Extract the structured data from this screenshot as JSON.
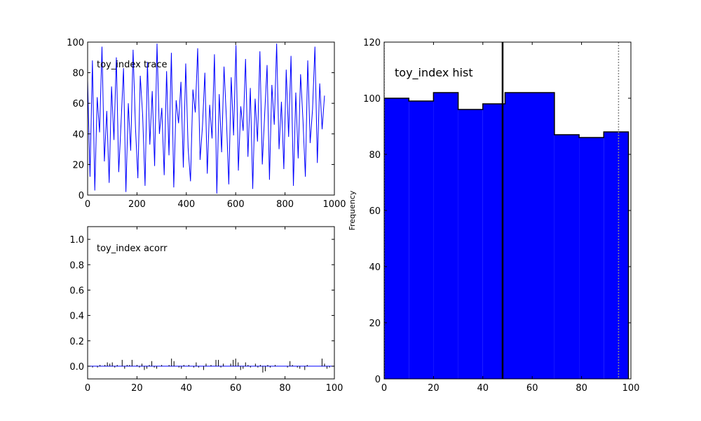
{
  "chart_data": [
    {
      "type": "line",
      "title": "toy_index trace",
      "xlim": [
        0,
        1000
      ],
      "ylim": [
        0,
        100
      ],
      "x_ticks": [
        "0",
        "200",
        "400",
        "600",
        "800",
        "1000"
      ],
      "y_ticks": [
        "0",
        "20",
        "40",
        "60",
        "80",
        "100"
      ],
      "series": [
        {
          "color": "#0000ff",
          "x_range": [
            0,
            960
          ],
          "values": [
            75,
            12,
            88,
            3,
            64,
            41,
            97,
            22,
            55,
            8,
            71,
            36,
            90,
            15,
            48,
            83,
            2,
            60,
            29,
            95,
            44,
            11,
            78,
            52,
            6,
            87,
            33,
            68,
            19,
            99,
            40,
            57,
            13,
            81,
            26,
            93,
            5,
            62,
            47,
            74,
            18,
            86,
            31,
            9,
            69,
            54,
            96,
            23,
            45,
            80,
            14,
            59,
            37,
            92,
            1,
            66,
            28,
            84,
            50,
            7,
            77,
            39,
            98,
            16,
            58,
            42,
            89,
            25,
            70,
            4,
            63,
            35,
            94,
            20,
            53,
            85,
            10,
            72,
            46,
            99,
            30,
            61,
            17,
            82,
            38,
            91,
            6,
            67,
            24,
            79,
            49,
            12,
            88,
            34,
            56,
            97,
            21,
            73,
            43,
            65
          ],
          "note": ""
        }
      ]
    },
    {
      "type": "bar",
      "title": "toy_index acorr",
      "xlim": [
        0,
        100
      ],
      "ylim": [
        -0.1,
        1.1
      ],
      "x_ticks": [
        "0",
        "20",
        "40",
        "60",
        "80",
        "100"
      ],
      "y_ticks": [
        "0.0",
        "0.2",
        "0.4",
        "0.6",
        "0.8",
        "1.0"
      ],
      "lags": [
        1,
        2,
        3,
        4,
        5,
        6,
        7,
        8,
        9,
        10,
        11,
        12,
        13,
        14,
        15,
        16,
        17,
        18,
        19,
        20,
        21,
        22,
        23,
        24,
        25,
        26,
        27,
        28,
        29,
        30,
        31,
        32,
        33,
        34,
        35,
        36,
        37,
        38,
        39,
        40,
        41,
        42,
        43,
        44,
        45,
        46,
        47,
        48,
        49,
        50,
        51,
        52,
        53,
        54,
        55,
        56,
        57,
        58,
        59,
        60,
        61,
        62,
        63,
        64,
        65,
        66,
        67,
        68,
        69,
        70,
        71,
        72,
        73,
        74,
        75,
        76,
        77,
        78,
        79,
        80,
        81,
        82,
        83,
        84,
        85,
        86,
        87,
        88,
        89,
        90,
        91,
        92,
        93,
        94,
        95,
        96,
        97,
        98,
        99
      ],
      "values": [
        0.0,
        -0.01,
        0.0,
        -0.01,
        0.01,
        0.0,
        0.01,
        0.03,
        0.02,
        0.03,
        -0.01,
        0.01,
        0.0,
        0.05,
        -0.02,
        0.01,
        0.01,
        0.05,
        0.0,
        0.01,
        -0.01,
        0.02,
        -0.03,
        -0.02,
        0.01,
        0.04,
        -0.01,
        -0.02,
        0.0,
        0.01,
        0.0,
        0.0,
        0.01,
        0.06,
        0.04,
        0.0,
        -0.01,
        -0.02,
        0.01,
        0.0,
        0.01,
        0.0,
        -0.01,
        0.03,
        -0.01,
        0.0,
        -0.03,
        0.02,
        0.0,
        0.01,
        0.0,
        0.05,
        0.05,
        -0.01,
        0.02,
        0.0,
        0.0,
        0.02,
        0.05,
        0.06,
        0.03,
        -0.03,
        -0.02,
        0.03,
        0.01,
        -0.01,
        0.0,
        0.02,
        -0.01,
        0.01,
        -0.05,
        -0.04,
        0.01,
        -0.01,
        0.0,
        0.01,
        0.0,
        0.0,
        0.0,
        0.0,
        -0.01,
        0.04,
        0.01,
        0.0,
        -0.01,
        -0.02,
        0.0,
        -0.03,
        0.01,
        0.0,
        0.0,
        0.0,
        0.0,
        0.0,
        0.06,
        0.02,
        -0.02,
        -0.01,
        0.0
      ],
      "color": "#000000"
    },
    {
      "type": "bar",
      "title": "toy_index hist",
      "ylabel": "Frequency",
      "xlim": [
        0,
        100
      ],
      "ylim": [
        0,
        120
      ],
      "x_ticks": [
        "0",
        "20",
        "40",
        "60",
        "80",
        "100"
      ],
      "y_ticks": [
        "0",
        "20",
        "40",
        "60",
        "80",
        "100",
        "120"
      ],
      "bins": [
        {
          "x0": 0,
          "x1": 10,
          "count": 100
        },
        {
          "x0": 10,
          "x1": 20,
          "count": 99
        },
        {
          "x0": 20,
          "x1": 30,
          "count": 102
        },
        {
          "x0": 30,
          "x1": 40,
          "count": 96
        },
        {
          "x0": 40,
          "x1": 49,
          "count": 98
        },
        {
          "x0": 49,
          "x1": 69,
          "count": 102
        },
        {
          "x0": 69,
          "x1": 79,
          "count": 87
        },
        {
          "x0": 79,
          "x1": 89,
          "count": 86
        },
        {
          "x0": 89,
          "x1": 99,
          "count": 88
        }
      ],
      "fill": "#0000ff",
      "edge": "#000000",
      "vlines": [
        {
          "x": 48,
          "style": "solid"
        },
        {
          "x": 0,
          "style": "dotted"
        },
        {
          "x": 95,
          "style": "dotted"
        }
      ]
    }
  ]
}
